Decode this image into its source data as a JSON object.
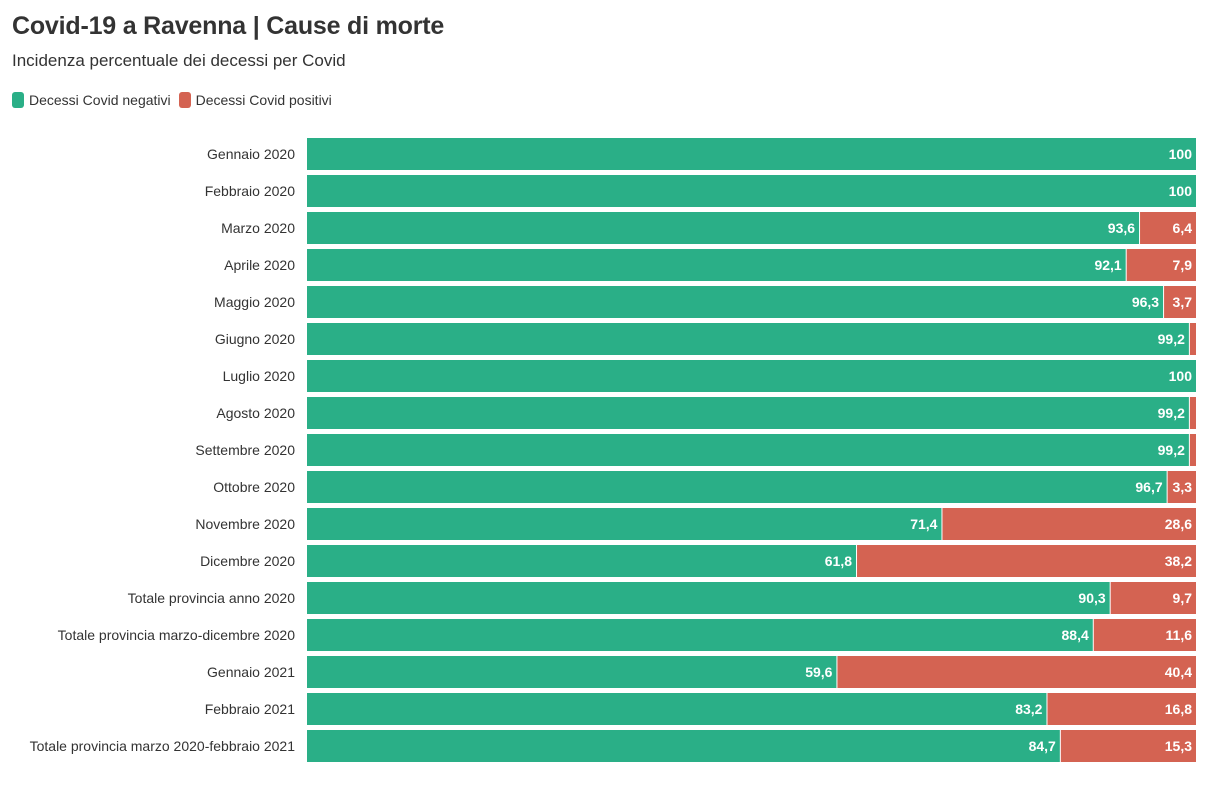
{
  "title": "Covid-19 a Ravenna | Cause di morte",
  "subtitle": "Incidenza percentuale dei decessi per Covid",
  "legend": [
    {
      "label": "Decessi Covid negativi",
      "color": "#2aaf87"
    },
    {
      "label": "Decessi Covid positivi",
      "color": "#d46352"
    }
  ],
  "chart_data": {
    "type": "bar",
    "orientation": "horizontal",
    "stacked": true,
    "xlim": [
      0,
      100
    ],
    "grid": false,
    "legend_position": "top-left",
    "categories": [
      "Gennaio 2020",
      "Febbraio 2020",
      "Marzo 2020",
      "Aprile 2020",
      "Maggio 2020",
      "Giugno 2020",
      "Luglio 2020",
      "Agosto 2020",
      "Settembre 2020",
      "Ottobre 2020",
      "Novembre 2020",
      "Dicembre 2020",
      "Totale provincia anno 2020",
      "Totale provincia marzo-dicembre 2020",
      "Gennaio 2021",
      "Febbraio 2021",
      "Totale provincia marzo 2020-febbraio 2021"
    ],
    "series": [
      {
        "name": "Decessi Covid negativi",
        "color": "#2aaf87",
        "values": [
          100,
          100,
          93.6,
          92.1,
          96.3,
          99.2,
          100,
          99.2,
          99.2,
          96.7,
          71.4,
          61.8,
          90.3,
          88.4,
          59.6,
          83.2,
          84.7
        ],
        "labels": [
          "100",
          "100",
          "93,6",
          "92,1",
          "96,3",
          "99,2",
          "100",
          "99,2",
          "99,2",
          "96,7",
          "71,4",
          "61,8",
          "90,3",
          "88,4",
          "59,6",
          "83,2",
          "84,7"
        ]
      },
      {
        "name": "Decessi Covid positivi",
        "color": "#d46352",
        "values": [
          0,
          0,
          6.4,
          7.9,
          3.7,
          0.8,
          0,
          0.8,
          0.8,
          3.3,
          28.6,
          38.2,
          9.7,
          11.6,
          40.4,
          16.8,
          15.3
        ],
        "labels": [
          "",
          "",
          "6,4",
          "7,9",
          "3,7",
          "",
          "",
          "",
          "",
          "3,3",
          "28,6",
          "38,2",
          "9,7",
          "11,6",
          "40,4",
          "16,8",
          "15,3"
        ]
      }
    ]
  }
}
